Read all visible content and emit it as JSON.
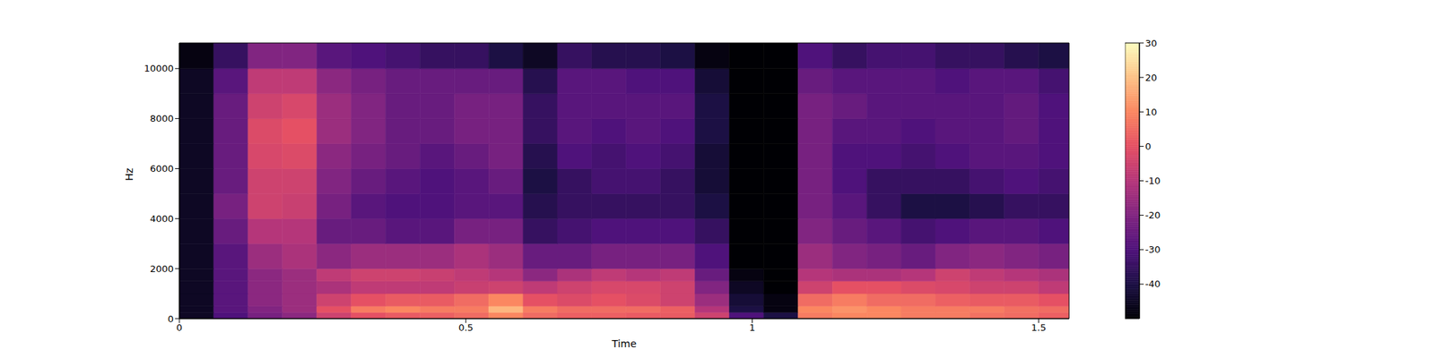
{
  "chart_data": {
    "type": "heatmap",
    "xlabel": "Time",
    "ylabel": "Hz",
    "xlim": [
      0,
      1.553
    ],
    "xticks": [
      0,
      0.5,
      1,
      1.5
    ],
    "ylim": [
      0,
      11025
    ],
    "yticks": [
      0,
      2000,
      4000,
      6000,
      8000,
      10000
    ],
    "zlim": [
      -50,
      30
    ],
    "zticks": [
      -40,
      -30,
      -20,
      -10,
      0,
      10,
      20,
      30
    ],
    "x_edges": [
      0,
      0.06,
      0.12,
      0.18,
      0.24,
      0.3,
      0.36,
      0.42,
      0.48,
      0.54,
      0.6,
      0.66,
      0.72,
      0.78,
      0.84,
      0.9,
      0.96,
      1.02,
      1.08,
      1.14,
      1.2,
      1.26,
      1.32,
      1.38,
      1.44,
      1.5,
      1.553
    ],
    "y_edges": [
      0,
      250,
      500,
      1000,
      1500,
      2000,
      3000,
      4000,
      5000,
      6000,
      7000,
      8000,
      9000,
      10000,
      11025
    ],
    "z": [
      [
        -45,
        -30,
        -22,
        -18,
        -5,
        0,
        2,
        3,
        5,
        10,
        5,
        3,
        3,
        2,
        2,
        -5,
        -30,
        -40,
        8,
        10,
        10,
        8,
        8,
        6,
        5,
        3
      ],
      [
        -45,
        -28,
        -20,
        -15,
        0,
        8,
        10,
        8,
        8,
        18,
        8,
        5,
        5,
        5,
        3,
        -10,
        -40,
        -48,
        10,
        12,
        10,
        8,
        8,
        8,
        6,
        5
      ],
      [
        -45,
        -28,
        -18,
        -15,
        -5,
        0,
        2,
        2,
        5,
        10,
        0,
        -2,
        0,
        -2,
        -5,
        -15,
        -42,
        -48,
        5,
        8,
        5,
        5,
        3,
        2,
        2,
        0
      ],
      [
        -45,
        -28,
        -18,
        -15,
        -12,
        -8,
        -8,
        -8,
        -6,
        -5,
        -8,
        -5,
        -3,
        -3,
        -5,
        -20,
        -45,
        -50,
        -5,
        0,
        0,
        -2,
        -3,
        -5,
        -5,
        -8
      ],
      [
        -45,
        -28,
        -18,
        -15,
        -8,
        -5,
        -5,
        -6,
        -8,
        -10,
        -18,
        -12,
        -8,
        -10,
        -8,
        -25,
        -48,
        -50,
        -10,
        -12,
        -12,
        -10,
        -5,
        -8,
        -10,
        -12
      ],
      [
        -45,
        -28,
        -15,
        -12,
        -18,
        -15,
        -15,
        -15,
        -12,
        -15,
        -25,
        -25,
        -22,
        -22,
        -22,
        -30,
        -50,
        -50,
        -15,
        -20,
        -22,
        -25,
        -20,
        -18,
        -20,
        -22
      ],
      [
        -45,
        -25,
        -10,
        -10,
        -25,
        -25,
        -28,
        -28,
        -22,
        -22,
        -35,
        -32,
        -30,
        -30,
        -30,
        -35,
        -50,
        -50,
        -20,
        -25,
        -28,
        -32,
        -30,
        -28,
        -28,
        -30
      ],
      [
        -45,
        -22,
        -5,
        -6,
        -22,
        -28,
        -30,
        -30,
        -28,
        -28,
        -38,
        -35,
        -35,
        -35,
        -35,
        -40,
        -50,
        -50,
        -22,
        -28,
        -35,
        -40,
        -40,
        -38,
        -35,
        -35
      ],
      [
        -45,
        -25,
        -5,
        -5,
        -20,
        -25,
        -28,
        -30,
        -28,
        -25,
        -40,
        -35,
        -32,
        -32,
        -35,
        -42,
        -50,
        -50,
        -22,
        -30,
        -35,
        -35,
        -35,
        -32,
        -30,
        -32
      ],
      [
        -45,
        -25,
        -3,
        -2,
        -18,
        -22,
        -25,
        -28,
        -25,
        -22,
        -38,
        -30,
        -32,
        -30,
        -32,
        -42,
        -50,
        -50,
        -22,
        -30,
        -30,
        -32,
        -30,
        -28,
        -28,
        -30
      ],
      [
        -45,
        -25,
        -2,
        0,
        -15,
        -20,
        -25,
        -25,
        -22,
        -22,
        -35,
        -28,
        -30,
        -28,
        -30,
        -40,
        -50,
        -50,
        -22,
        -28,
        -28,
        -30,
        -28,
        -28,
        -26,
        -30
      ],
      [
        -45,
        -25,
        -5,
        -3,
        -15,
        -20,
        -25,
        -25,
        -22,
        -22,
        -35,
        -28,
        -28,
        -28,
        -28,
        -40,
        -50,
        -50,
        -22,
        -25,
        -28,
        -28,
        -28,
        -28,
        -26,
        -30
      ],
      [
        -45,
        -28,
        -8,
        -8,
        -18,
        -22,
        -25,
        -25,
        -25,
        -25,
        -38,
        -28,
        -28,
        -30,
        -30,
        -42,
        -50,
        -50,
        -25,
        -28,
        -28,
        -28,
        -30,
        -28,
        -28,
        -32
      ],
      [
        -48,
        -35,
        -20,
        -20,
        -28,
        -30,
        -32,
        -35,
        -35,
        -40,
        -45,
        -35,
        -38,
        -38,
        -40,
        -48,
        -50,
        -50,
        -30,
        -35,
        -32,
        -32,
        -35,
        -35,
        -38,
        -40
      ]
    ]
  }
}
